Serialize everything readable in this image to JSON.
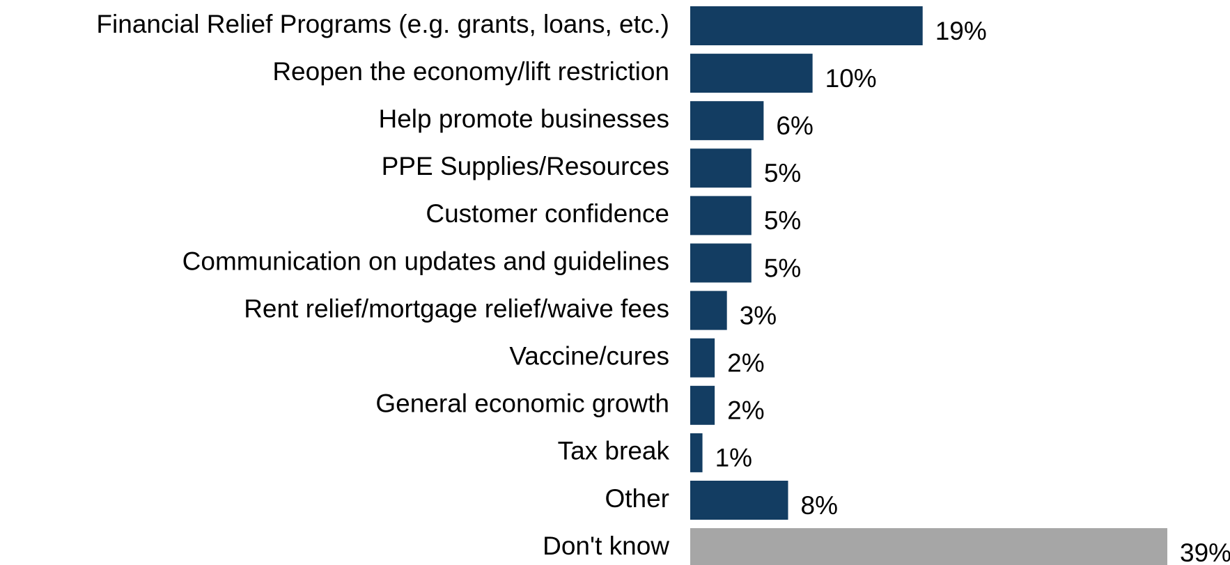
{
  "chart_data": {
    "type": "hbar",
    "categories": [
      "Financial Relief Programs (e.g. grants, loans, etc.)",
      "Reopen the economy/lift restriction",
      "Help promote businesses",
      "PPE Supplies/Resources",
      "Customer confidence",
      "Communication on updates and guidelines",
      "Rent relief/mortgage relief/waive fees",
      "Vaccine/cures",
      "General economic growth",
      "Tax break",
      "Other",
      "Don't know"
    ],
    "values": [
      19,
      10,
      6,
      5,
      5,
      5,
      3,
      2,
      2,
      1,
      8,
      39
    ],
    "value_labels": [
      "19%",
      "10%",
      "6%",
      "5%",
      "5%",
      "5%",
      "3%",
      "2%",
      "2%",
      "1%",
      "8%",
      "39%"
    ],
    "colors": [
      "#133d62",
      "#133d62",
      "#133d62",
      "#133d62",
      "#133d62",
      "#133d62",
      "#133d62",
      "#133d62",
      "#133d62",
      "#133d62",
      "#133d62",
      "#a6a6a6"
    ]
  }
}
